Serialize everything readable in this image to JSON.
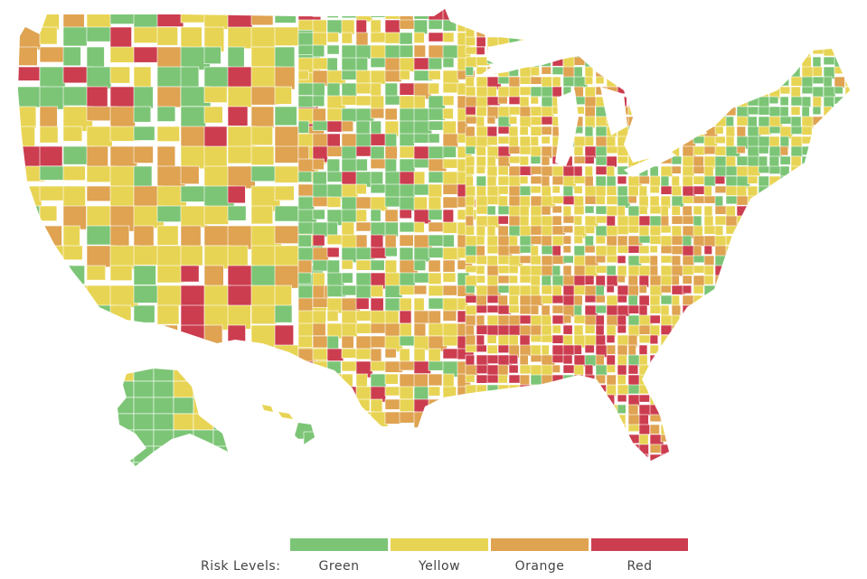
{
  "legend": {
    "title": "Risk Levels:",
    "levels": [
      {
        "label": "Green",
        "color": "#7cc576"
      },
      {
        "label": "Yellow",
        "color": "#e8d454"
      },
      {
        "label": "Orange",
        "color": "#dfa351"
      },
      {
        "label": "Red",
        "color": "#cc3d4f"
      }
    ]
  },
  "map": {
    "region": "United States counties",
    "border_color": "#ffffff",
    "background": "#ffffff"
  }
}
